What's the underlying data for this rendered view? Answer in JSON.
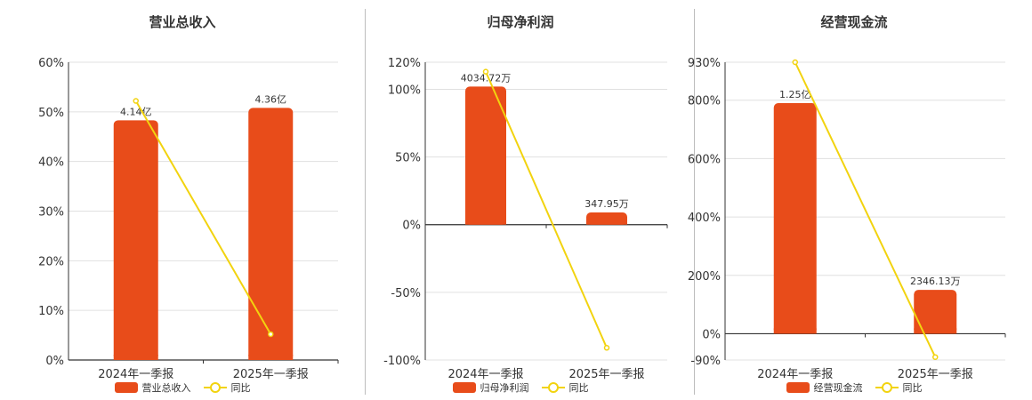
{
  "colors": {
    "bar": "#e84c1a",
    "line": "#f2d30f",
    "grid": "#e0e0e0",
    "axis": "#333333"
  },
  "chart_data": [
    {
      "type": "bar",
      "title": "营业总收入",
      "categories": [
        "2024年一季报",
        "2025年一季报"
      ],
      "bar_labels": [
        "4.14亿",
        "4.36亿"
      ],
      "bar_values_pct": [
        48.3,
        50.8
      ],
      "line_values": [
        52.2,
        5.2
      ],
      "yticks": [
        "0%",
        "10%",
        "20%",
        "30%",
        "40%",
        "50%",
        "60%"
      ],
      "ytick_values": [
        0,
        10,
        20,
        30,
        40,
        50,
        60
      ],
      "ylim": [
        0,
        60
      ],
      "legend": [
        "营业总收入",
        "同比"
      ]
    },
    {
      "type": "bar",
      "title": "归母净利润",
      "categories": [
        "2024年一季报",
        "2025年一季报"
      ],
      "bar_labels": [
        "4034.72万",
        "347.95万"
      ],
      "bar_values_pct": [
        102,
        9
      ],
      "line_values": [
        113,
        -91
      ],
      "yticks": [
        "120%",
        "100%",
        "50%",
        "0%",
        "-50%",
        "-100%"
      ],
      "ytick_values": [
        120,
        100,
        50,
        0,
        -50,
        -100
      ],
      "ylim": [
        -100,
        120
      ],
      "legend": [
        "归母净利润",
        "同比"
      ]
    },
    {
      "type": "bar",
      "title": "经营现金流",
      "categories": [
        "2024年一季报",
        "2025年一季报"
      ],
      "bar_labels": [
        "1.25亿",
        "2346.13万"
      ],
      "bar_values_pct": [
        790,
        150
      ],
      "line_values": [
        930,
        -80
      ],
      "yticks": [
        "930%",
        "800%",
        "600%",
        "400%",
        "200%",
        "0%",
        "-90%"
      ],
      "ytick_values": [
        930,
        800,
        600,
        400,
        200,
        0,
        -90
      ],
      "ylim": [
        -90,
        930
      ],
      "legend": [
        "经营现金流",
        "同比"
      ]
    }
  ]
}
